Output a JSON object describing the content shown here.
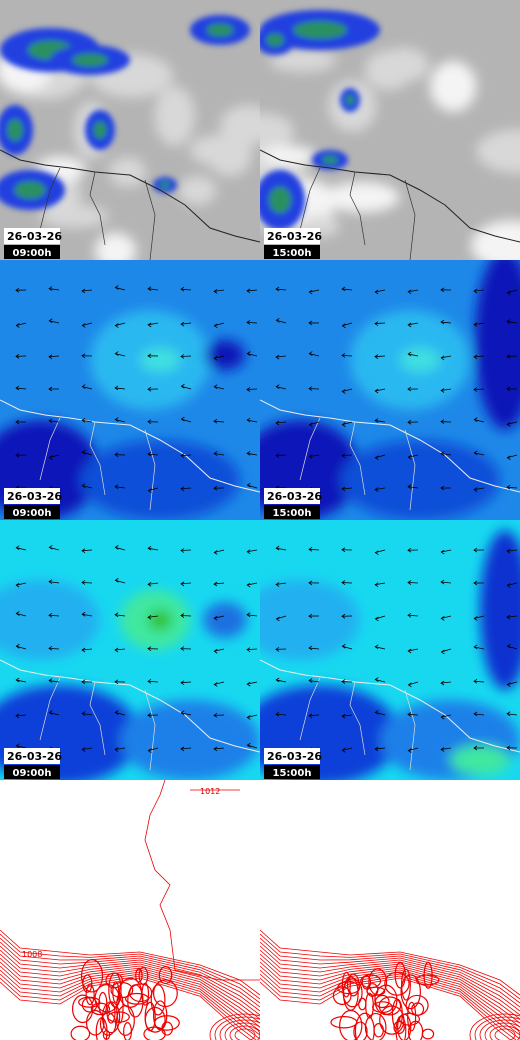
{
  "panels": [
    {
      "date": "26-03-26",
      "time": "09:00h"
    },
    {
      "date": "26-03-26",
      "time": "15:00h"
    },
    {
      "date": "26-03-26",
      "time": "09:00h"
    },
    {
      "date": "26-03-26",
      "time": "15:00h"
    },
    {
      "date": "26-03-26",
      "time": "09:00h"
    },
    {
      "date": "26-03-26",
      "time": "15:00h"
    }
  ],
  "contours": {
    "labels": [
      "1012",
      "1008"
    ]
  }
}
